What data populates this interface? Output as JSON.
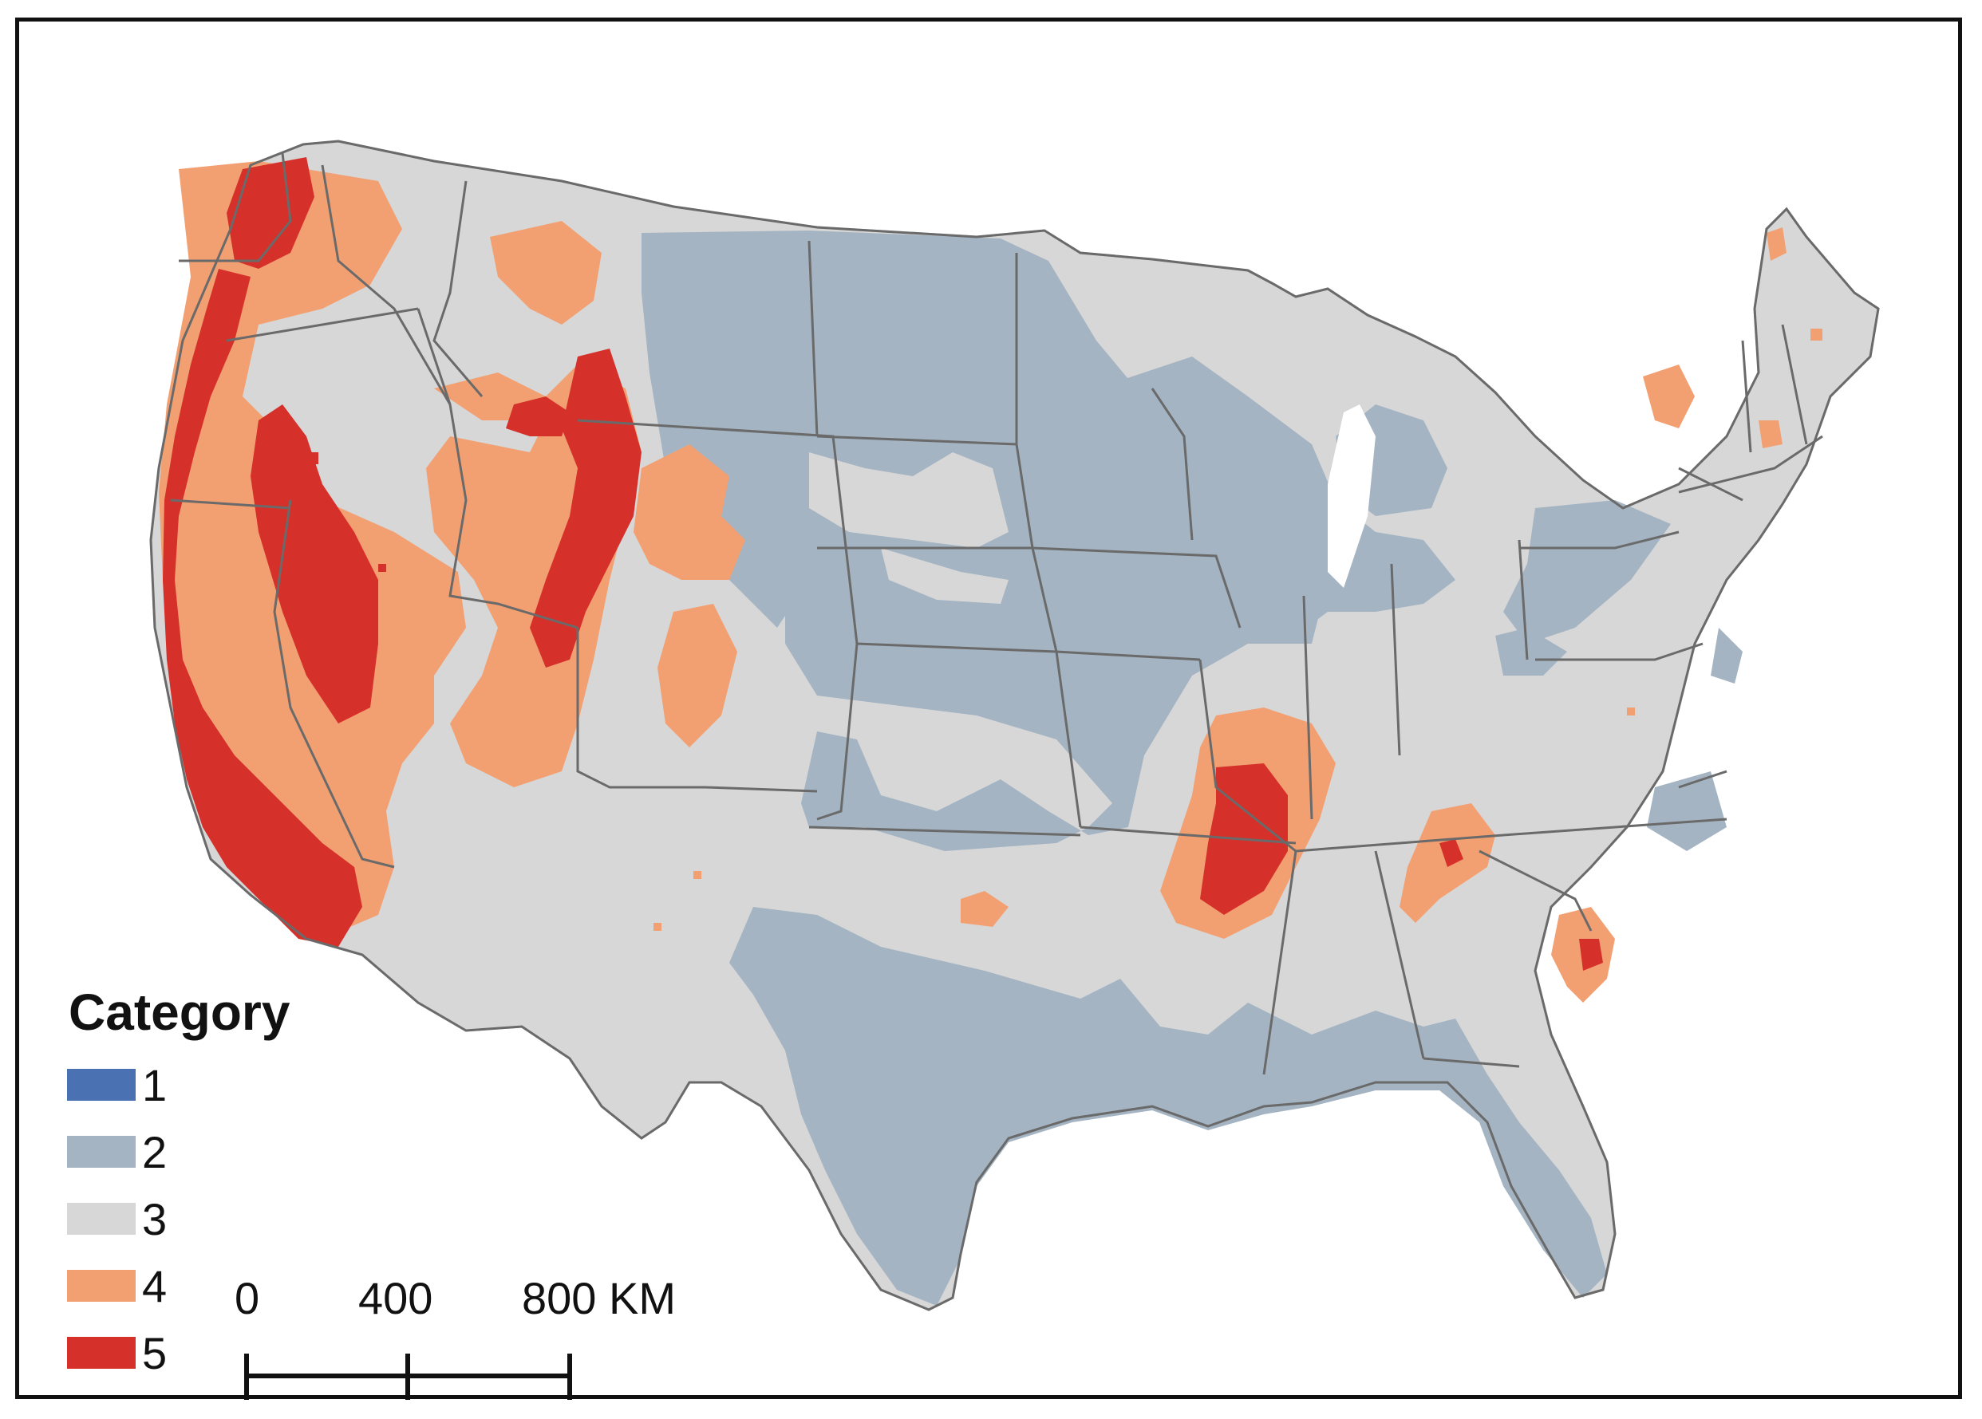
{
  "legend": {
    "title": "Category",
    "items": [
      {
        "label": "1",
        "color": "#4a72b2"
      },
      {
        "label": "2",
        "color": "#a4b4c2"
      },
      {
        "label": "3",
        "color": "#d7d7d7"
      },
      {
        "label": "4",
        "color": "#f2a072"
      },
      {
        "label": "5",
        "color": "#d6302a"
      }
    ]
  },
  "scale_bar": {
    "ticks": [
      "0",
      "400",
      "800 KM"
    ]
  },
  "colors": {
    "border": "#6a6a6a",
    "water": "#ffffff"
  }
}
